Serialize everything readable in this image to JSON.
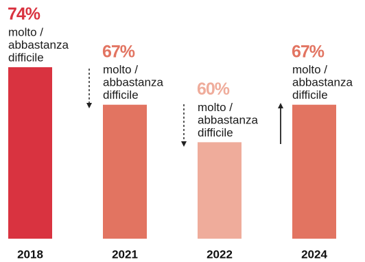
{
  "chart_data": {
    "type": "bar",
    "categories": [
      "2018",
      "2021",
      "2022",
      "2024"
    ],
    "values": [
      74,
      67,
      60,
      67
    ],
    "value_labels": [
      "74%",
      "67%",
      "60%",
      "67%"
    ],
    "colors": [
      "#d93340",
      "#e27461",
      "#efac9b",
      "#e27461"
    ],
    "sublabel": [
      "molto /",
      "abbastanza",
      "difficile"
    ],
    "ylim": [
      42,
      74
    ]
  }
}
